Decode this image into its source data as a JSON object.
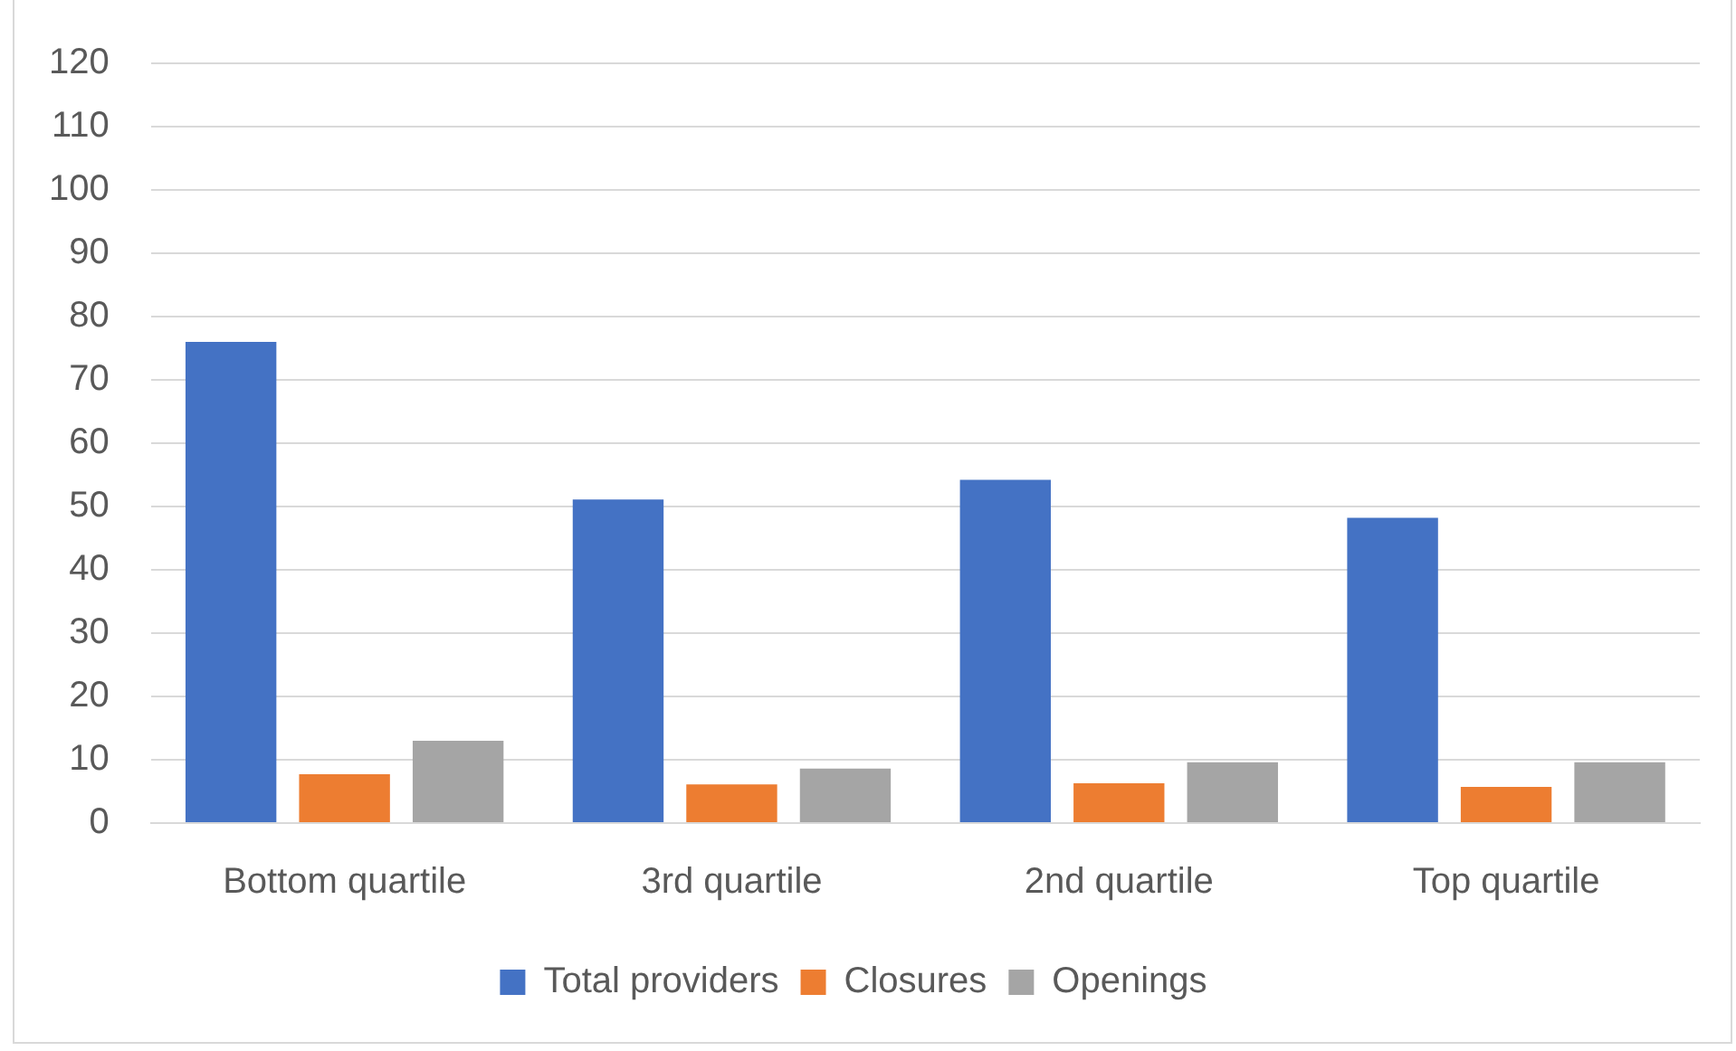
{
  "chart_data": {
    "type": "bar",
    "categories": [
      "Bottom quartile",
      "3rd quartile",
      "2nd quartile",
      "Top quartile"
    ],
    "series": [
      {
        "name": "Total providers",
        "color": "#4472c4",
        "values": [
          76,
          51.1,
          54.2,
          48.2
        ]
      },
      {
        "name": "Closures",
        "color": "#ed7d31",
        "values": [
          7.7,
          6.1,
          6.3,
          5.7
        ]
      },
      {
        "name": "Openings",
        "color": "#a5a5a5",
        "values": [
          13,
          8.6,
          9.6,
          9.6
        ]
      }
    ],
    "ylim": [
      0,
      120
    ],
    "yticks": [
      0,
      10,
      20,
      30,
      40,
      50,
      60,
      70,
      80,
      90,
      100,
      110,
      120
    ],
    "grid": "y",
    "legend": "bottom"
  }
}
